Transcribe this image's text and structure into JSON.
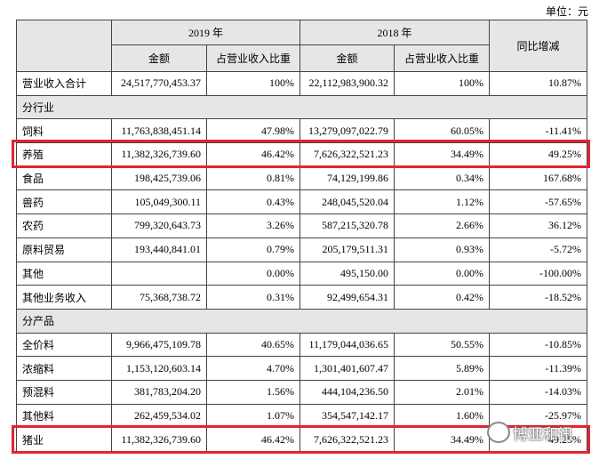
{
  "unit": "单位：元",
  "table": {
    "header": {
      "year_2019": "2019 年",
      "year_2018": "2018 年",
      "change": "同比增减",
      "amount_2019": "金额",
      "share_2019": "占营业收入比重",
      "amount_2018": "金额",
      "share_2018": "占营业收入比重"
    },
    "rows": [
      [
        "营业收入合计",
        "24,517,770,453.37",
        "100%",
        "22,112,983,900.32",
        "100%",
        "10.87%"
      ],
      [
        "分行业"
      ],
      [
        "饲料",
        "11,763,838,451.14",
        "47.98%",
        "13,279,097,022.79",
        "60.05%",
        "-11.41%"
      ],
      [
        "养殖",
        "11,382,326,739.60",
        "46.42%",
        "7,626,322,521.23",
        "34.49%",
        "49.25%"
      ],
      [
        "食品",
        "198,425,739.06",
        "0.81%",
        "74,129,199.86",
        "0.34%",
        "167.68%"
      ],
      [
        "兽药",
        "105,049,300.11",
        "0.43%",
        "248,045,520.04",
        "1.12%",
        "-57.65%"
      ],
      [
        "农药",
        "799,320,643.73",
        "3.26%",
        "587,215,320.78",
        "2.66%",
        "36.12%"
      ],
      [
        "原料贸易",
        "193,440,841.01",
        "0.79%",
        "205,179,511.31",
        "0.93%",
        "-5.72%"
      ],
      [
        "其他",
        null,
        "0.00%",
        "495,150.00",
        "0.00%",
        "-100.00%"
      ],
      [
        "其他业务收入",
        "75,368,738.72",
        "0.31%",
        "92,499,654.31",
        "0.42%",
        "-18.52%"
      ],
      [
        "分产品"
      ],
      [
        "全价料",
        "9,966,475,109.78",
        "40.65%",
        "11,179,044,036.65",
        "50.55%",
        "-10.85%"
      ],
      [
        "浓缩料",
        "1,153,120,603.14",
        "4.70%",
        "1,301,401,607.47",
        "5.89%",
        "-11.39%"
      ],
      [
        "预混料",
        "381,783,204.20",
        "1.56%",
        "444,104,236.50",
        "2.01%",
        "-14.03%"
      ],
      [
        "其他料",
        "262,459,534.02",
        "1.07%",
        "354,547,142.17",
        "1.60%",
        "-25.97%"
      ],
      [
        "猪业",
        "11,382,326,739.60",
        "46.42%",
        "7,626,322,521.23",
        "34.49%",
        "49.25%"
      ]
    ]
  },
  "watermark": "博亚和讯"
}
